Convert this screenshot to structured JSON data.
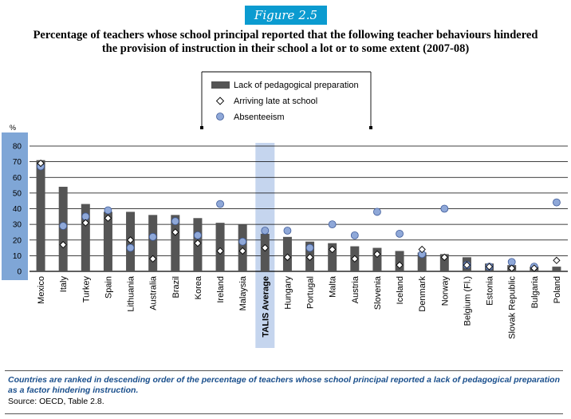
{
  "figure_label": "Figure 2.5",
  "title_line1": "Percentage of teachers whose school principal reported that the following teacher behaviours hindered",
  "title_line2": "the provision of instruction in their school a lot or to some extent (2007-08)",
  "footnote": "Countries are ranked in descending order of the percentage of teachers whose school principal reported a lack of pedagogical preparation as a factor hindering instruction.",
  "source": "Source: OECD, Table 2.8.",
  "colors": {
    "bar": "#555555",
    "circle_fill": "#8fa8d8",
    "circle_stroke": "#3d5a99",
    "axis_band": "#7fa6d6",
    "highlight": "#c5d5ee",
    "footnote": "#1a4f8c"
  },
  "chart_data": {
    "type": "bar",
    "ylabel": "%",
    "ylim": [
      0,
      80
    ],
    "yticks": [
      0,
      10,
      20,
      30,
      40,
      50,
      60,
      70,
      80
    ],
    "grid": true,
    "legend_position": "top-center",
    "highlight_category": "TALIS Average",
    "categories": [
      "Mexico",
      "Italy",
      "Turkey",
      "Spain",
      "Lithuania",
      "Australia",
      "Brazil",
      "Korea",
      "Ireland",
      "Malaysia",
      "TALIS Average",
      "Hungary",
      "Portugal",
      "Malta",
      "Austria",
      "Slovenia",
      "Iceland",
      "Denmark",
      "Norway",
      "Belgium (Fl.)",
      "Estonia",
      "Slovak Republic",
      "Bulgaria",
      "Poland"
    ],
    "series": [
      {
        "name": "Lack of pedagogical preparation",
        "marker": "bar",
        "values": [
          71,
          54,
          43,
          38,
          38,
          36,
          36,
          34,
          31,
          30,
          24,
          22,
          19,
          18,
          16,
          15,
          13,
          12,
          11,
          9,
          5,
          4,
          3,
          3
        ]
      },
      {
        "name": "Arriving late at school",
        "marker": "diamond",
        "values": [
          69,
          17,
          31,
          34,
          20,
          8,
          25,
          18,
          13,
          13,
          15,
          9,
          9,
          14,
          8,
          11,
          4,
          14,
          9,
          4,
          3,
          2,
          2,
          7
        ]
      },
      {
        "name": "Absenteeism",
        "marker": "circle",
        "values": [
          67,
          29,
          35,
          39,
          15,
          22,
          32,
          23,
          43,
          19,
          26,
          26,
          15,
          30,
          23,
          38,
          24,
          11,
          40,
          4,
          3,
          6,
          3,
          44
        ]
      }
    ]
  }
}
